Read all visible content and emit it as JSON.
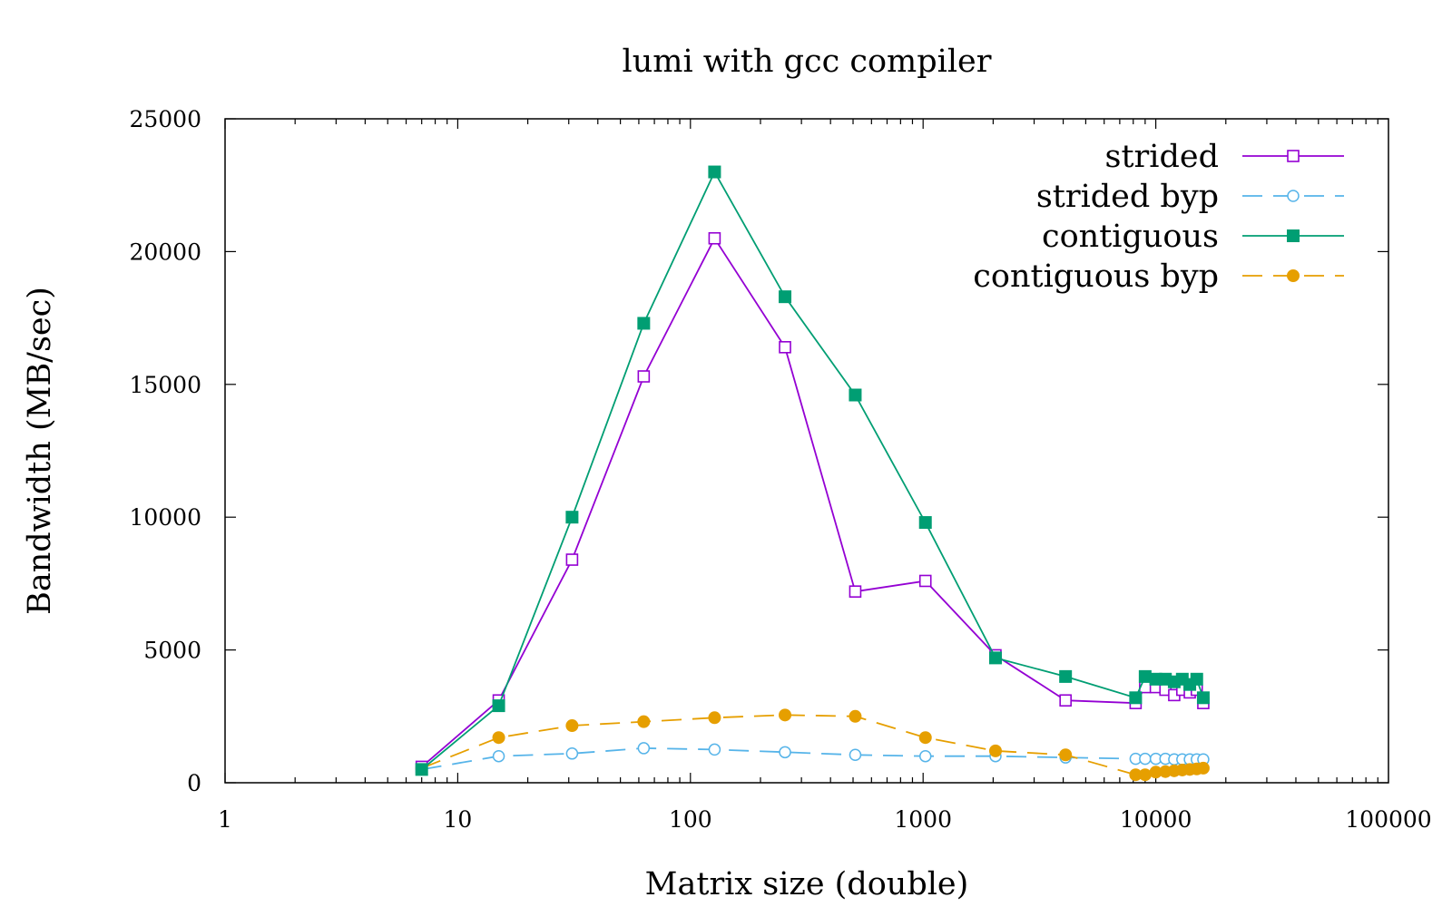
{
  "chart_data": {
    "type": "line",
    "title": "lumi with gcc compiler",
    "xlabel": "Matrix size (double)",
    "ylabel": "Bandwidth (MB/sec)",
    "xscale": "log",
    "xlim": [
      1,
      100000
    ],
    "ylim": [
      0,
      25000
    ],
    "xticks": [
      "1",
      "10",
      "100",
      "1000",
      "10000",
      "100000"
    ],
    "yticks": [
      "0",
      "5000",
      "10000",
      "15000",
      "20000",
      "25000"
    ],
    "legend_position": "top-right",
    "grid": false,
    "series": [
      {
        "name": "strided",
        "color": "#9400d3",
        "marker": "open-square",
        "line": "solid",
        "points": [
          [
            7,
            600
          ],
          [
            15,
            3100
          ],
          [
            31,
            8400
          ],
          [
            63,
            15300
          ],
          [
            127,
            20500
          ],
          [
            255,
            16400
          ],
          [
            511,
            7200
          ],
          [
            1023,
            7600
          ],
          [
            2047,
            4800
          ],
          [
            4095,
            3100
          ],
          [
            8191,
            3000
          ],
          [
            9000,
            3600
          ],
          [
            10000,
            3600
          ],
          [
            11000,
            3500
          ],
          [
            12000,
            3300
          ],
          [
            13000,
            3500
          ],
          [
            14000,
            3400
          ],
          [
            15000,
            3500
          ],
          [
            16000,
            3000
          ]
        ]
      },
      {
        "name": "strided byp",
        "color": "#56b4e9",
        "marker": "open-circle",
        "line": "dashed",
        "points": [
          [
            7,
            500
          ],
          [
            15,
            1000
          ],
          [
            31,
            1100
          ],
          [
            63,
            1300
          ],
          [
            127,
            1250
          ],
          [
            255,
            1150
          ],
          [
            511,
            1050
          ],
          [
            1023,
            1000
          ],
          [
            2047,
            1000
          ],
          [
            4095,
            950
          ],
          [
            8191,
            900
          ],
          [
            9000,
            900
          ],
          [
            10000,
            900
          ],
          [
            11000,
            900
          ],
          [
            12000,
            880
          ],
          [
            13000,
            880
          ],
          [
            14000,
            880
          ],
          [
            15000,
            880
          ],
          [
            16000,
            880
          ]
        ]
      },
      {
        "name": "contiguous",
        "color": "#009e73",
        "marker": "filled-square",
        "line": "solid",
        "points": [
          [
            7,
            500
          ],
          [
            15,
            2900
          ],
          [
            31,
            10000
          ],
          [
            63,
            17300
          ],
          [
            127,
            23000
          ],
          [
            255,
            18300
          ],
          [
            511,
            14600
          ],
          [
            1023,
            9800
          ],
          [
            2047,
            4700
          ],
          [
            4095,
            4000
          ],
          [
            8191,
            3200
          ],
          [
            9000,
            4000
          ],
          [
            10000,
            3900
          ],
          [
            11000,
            3900
          ],
          [
            12000,
            3800
          ],
          [
            13000,
            3900
          ],
          [
            14000,
            3700
          ],
          [
            15000,
            3900
          ],
          [
            16000,
            3200
          ]
        ]
      },
      {
        "name": "contiguous byp",
        "color": "#e69f00",
        "marker": "filled-circle",
        "line": "dashed",
        "points": [
          [
            7,
            550
          ],
          [
            15,
            1700
          ],
          [
            31,
            2150
          ],
          [
            63,
            2300
          ],
          [
            127,
            2450
          ],
          [
            255,
            2550
          ],
          [
            511,
            2500
          ],
          [
            1023,
            1700
          ],
          [
            2047,
            1200
          ],
          [
            4095,
            1050
          ],
          [
            8191,
            300
          ],
          [
            9000,
            300
          ],
          [
            10000,
            400
          ],
          [
            11000,
            420
          ],
          [
            12000,
            450
          ],
          [
            13000,
            480
          ],
          [
            14000,
            500
          ],
          [
            15000,
            520
          ],
          [
            16000,
            550
          ]
        ]
      }
    ]
  }
}
